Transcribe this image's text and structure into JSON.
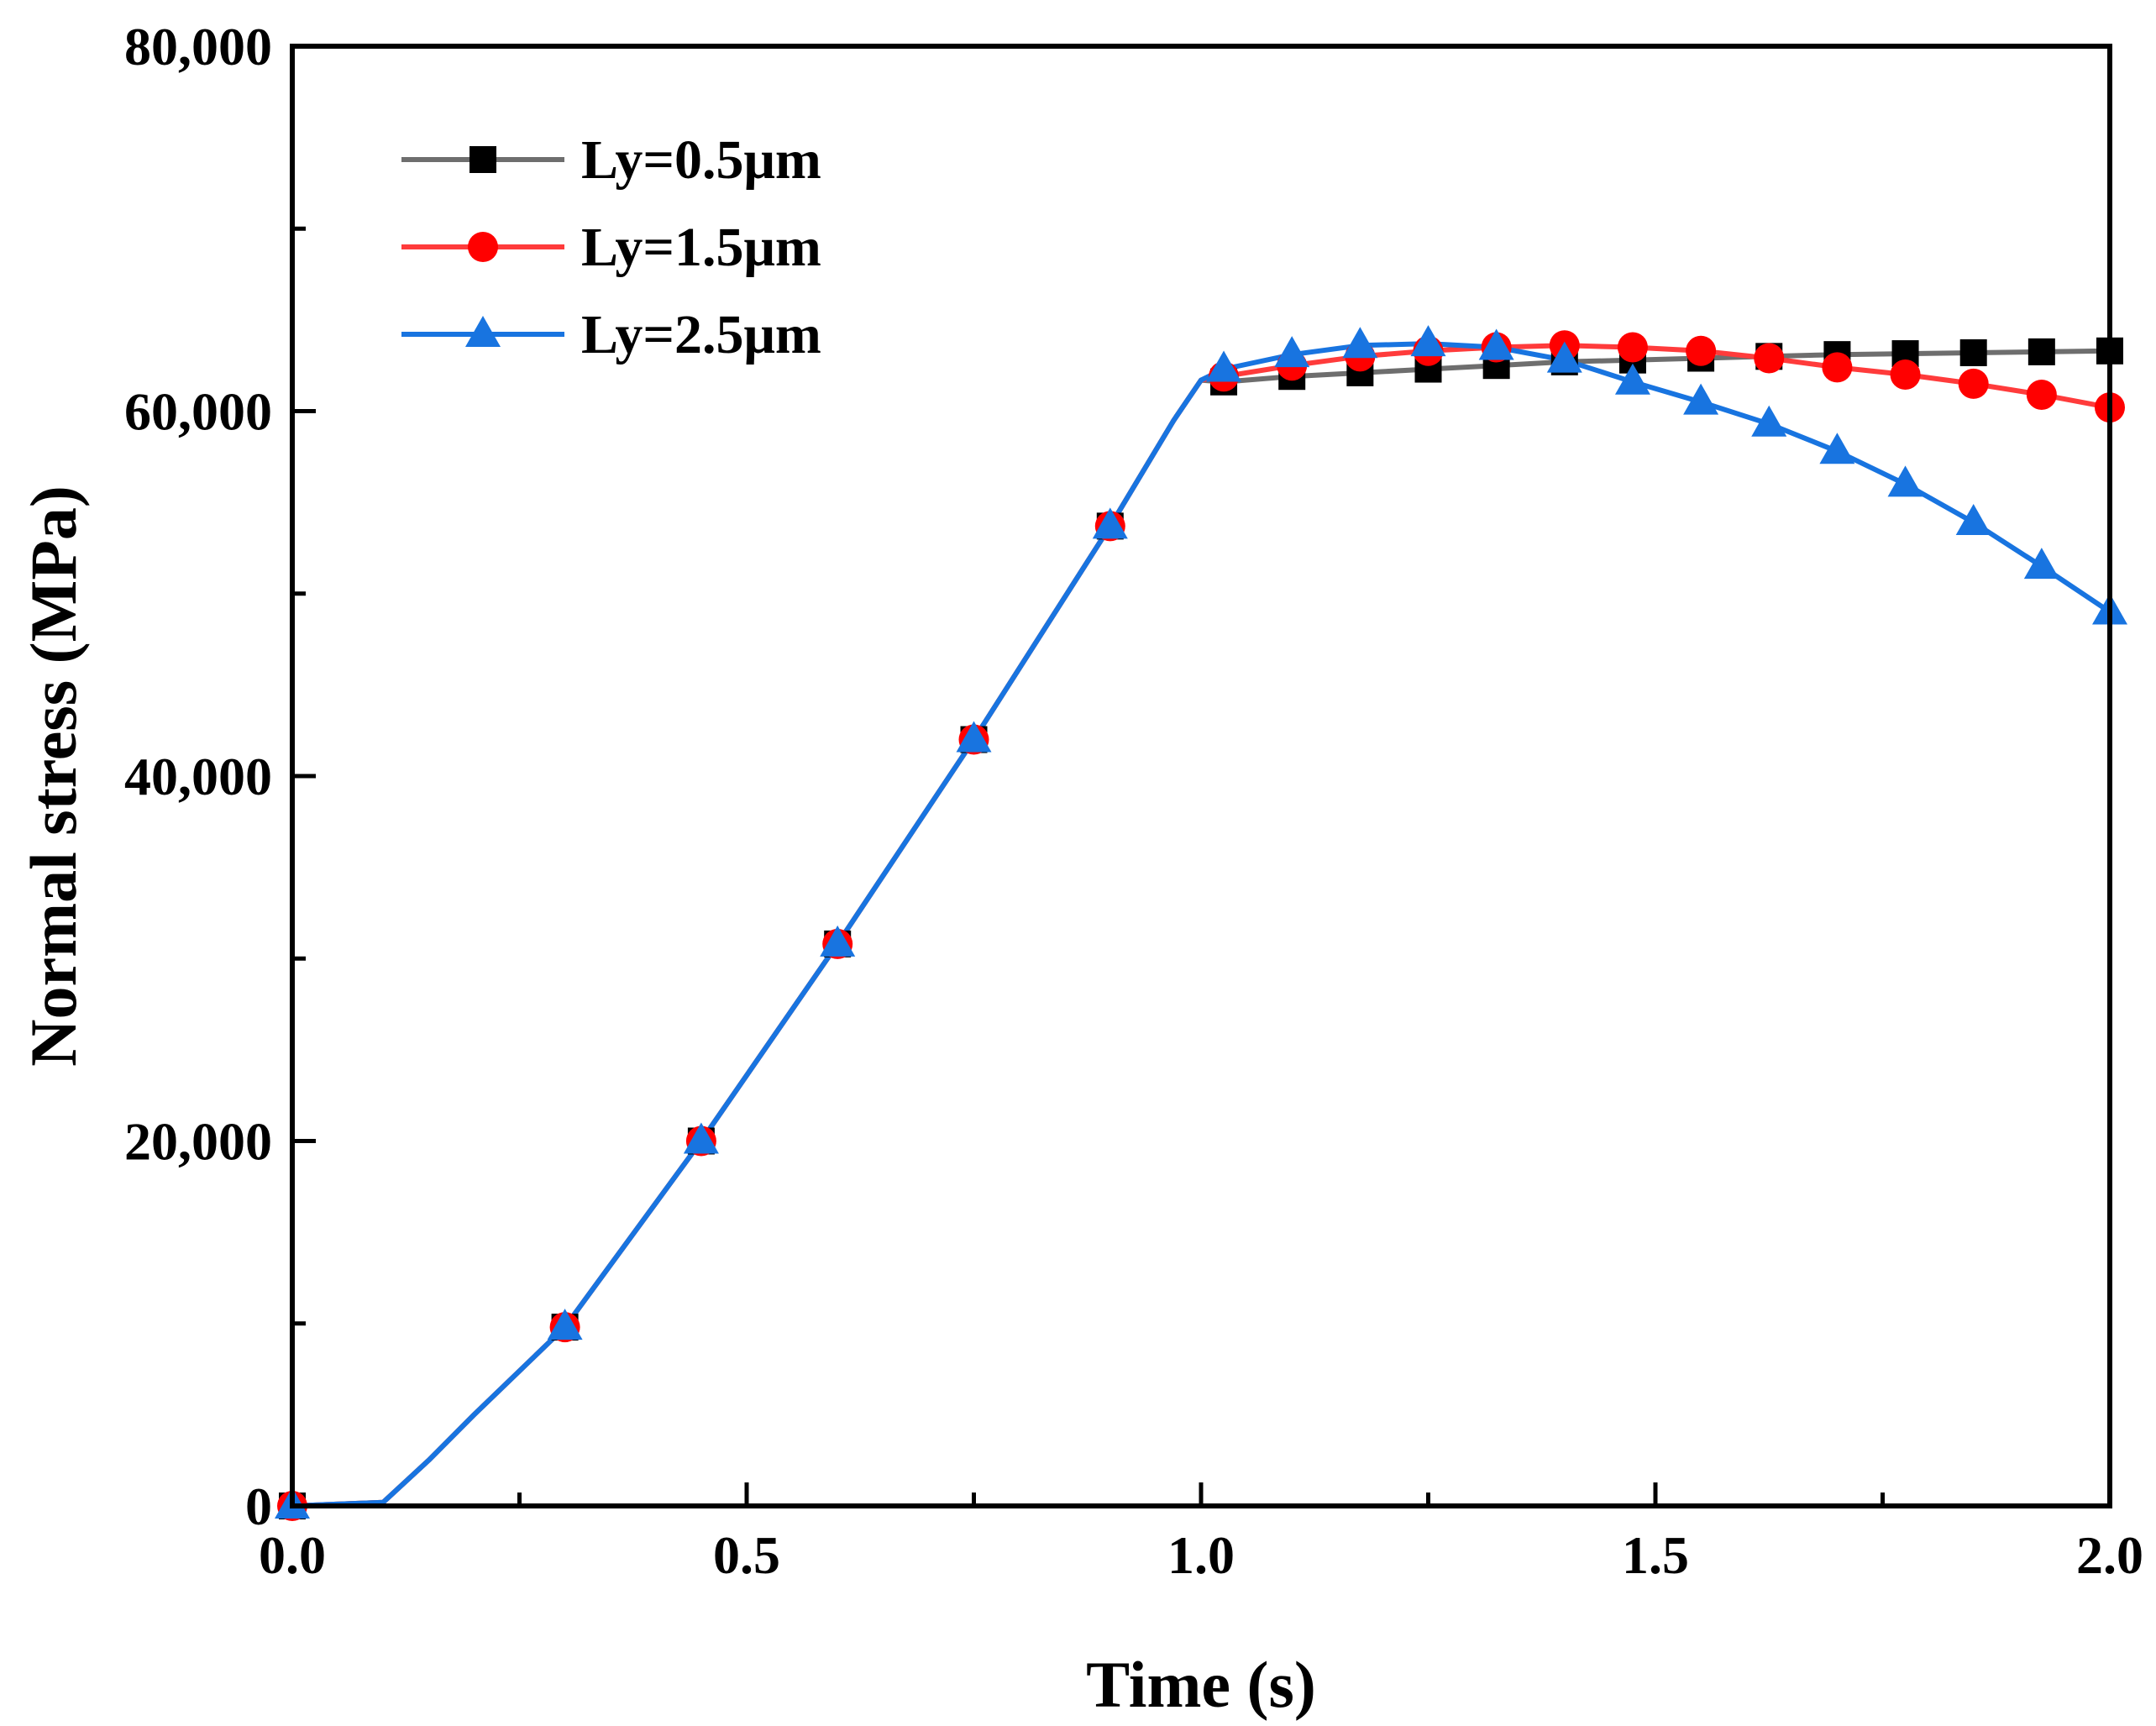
{
  "chart_data": {
    "type": "line",
    "title": "",
    "xlabel": "Time (s)",
    "ylabel": "Normal stress (MPa)",
    "xlim": [
      0,
      2.0
    ],
    "ylim": [
      0,
      80000
    ],
    "x_ticks": [
      0.0,
      0.5,
      1.0,
      1.5,
      2.0
    ],
    "x_tick_labels": [
      "0.0",
      "0.5",
      "1.0",
      "1.5",
      "2.0"
    ],
    "y_ticks": [
      0,
      20000,
      40000,
      60000,
      80000
    ],
    "y_tick_labels": [
      "0",
      "20,000",
      "40,000",
      "60,000",
      "80,000"
    ],
    "grid": false,
    "legend_position": "top-left",
    "series": [
      {
        "name": "Ly=0.5μm",
        "color": "#6e6e6e",
        "marker_color": "#000000",
        "marker": "square",
        "curve_x": [
          0,
          0.1,
          0.15,
          0.2,
          0.3,
          0.45,
          0.6,
          0.75,
          0.9,
          0.97,
          1.0,
          1.025,
          1.1,
          1.175,
          1.25,
          1.325,
          1.4,
          1.475,
          1.55,
          1.625,
          1.7,
          1.775,
          1.85,
          1.925,
          2.0
        ],
        "curve_y": [
          0,
          200,
          2500,
          5000,
          9800,
          20000,
          30800,
          42000,
          53700,
          59500,
          61700,
          61600,
          61900,
          62100,
          62300,
          62500,
          62700,
          62800,
          62900,
          63000,
          63100,
          63150,
          63200,
          63250,
          63300
        ],
        "marker_x": [
          0,
          0.3,
          0.45,
          0.6,
          0.75,
          0.9,
          1.025,
          1.1,
          1.175,
          1.25,
          1.325,
          1.4,
          1.475,
          1.55,
          1.625,
          1.7,
          1.775,
          1.85,
          1.925,
          2.0
        ],
        "marker_y": [
          0,
          9800,
          20000,
          30800,
          42000,
          53700,
          61600,
          61900,
          62100,
          62300,
          62500,
          62700,
          62800,
          62900,
          63000,
          63100,
          63150,
          63200,
          63250,
          63300
        ]
      },
      {
        "name": "Ly=1.5μm",
        "color": "#ff3b3b",
        "marker_color": "#ff0000",
        "marker": "circle",
        "curve_x": [
          0,
          0.1,
          0.15,
          0.2,
          0.3,
          0.45,
          0.6,
          0.75,
          0.9,
          0.97,
          1.0,
          1.025,
          1.1,
          1.175,
          1.25,
          1.325,
          1.4,
          1.475,
          1.55,
          1.625,
          1.7,
          1.775,
          1.85,
          1.925,
          2.0
        ],
        "curve_y": [
          0,
          200,
          2500,
          5000,
          9800,
          20000,
          30800,
          42000,
          53700,
          59500,
          61700,
          61900,
          62500,
          63000,
          63300,
          63500,
          63600,
          63500,
          63300,
          62900,
          62400,
          62000,
          61500,
          60900,
          60200
        ],
        "marker_x": [
          0,
          0.3,
          0.45,
          0.6,
          0.75,
          0.9,
          1.025,
          1.1,
          1.175,
          1.25,
          1.325,
          1.4,
          1.475,
          1.55,
          1.625,
          1.7,
          1.775,
          1.85,
          1.925,
          2.0
        ],
        "marker_y": [
          0,
          9800,
          20000,
          30800,
          42000,
          53700,
          61900,
          62500,
          63000,
          63300,
          63500,
          63600,
          63500,
          63300,
          62900,
          62400,
          62000,
          61500,
          60900,
          60200
        ]
      },
      {
        "name": "Ly=2.5μm",
        "color": "#1874e0",
        "marker_color": "#1874e0",
        "marker": "triangle",
        "curve_x": [
          0,
          0.1,
          0.15,
          0.2,
          0.3,
          0.45,
          0.6,
          0.75,
          0.9,
          0.97,
          1.0,
          1.025,
          1.1,
          1.175,
          1.25,
          1.325,
          1.4,
          1.475,
          1.55,
          1.625,
          1.7,
          1.775,
          1.85,
          1.925,
          2.0
        ],
        "curve_y": [
          0,
          200,
          2500,
          5000,
          9800,
          20000,
          30800,
          42000,
          53700,
          59500,
          61700,
          62300,
          63100,
          63600,
          63700,
          63500,
          62800,
          61600,
          60500,
          59300,
          57800,
          56000,
          53900,
          51500,
          49000
        ],
        "marker_x": [
          0,
          0.3,
          0.45,
          0.6,
          0.75,
          0.9,
          1.025,
          1.1,
          1.175,
          1.25,
          1.325,
          1.4,
          1.475,
          1.55,
          1.625,
          1.7,
          1.775,
          1.85,
          1.925,
          2.0
        ],
        "marker_y": [
          0,
          9800,
          20000,
          30800,
          42000,
          53700,
          62300,
          63100,
          63600,
          63700,
          63500,
          62800,
          61600,
          60500,
          59300,
          57800,
          56000,
          53900,
          51500,
          49000
        ]
      }
    ]
  }
}
